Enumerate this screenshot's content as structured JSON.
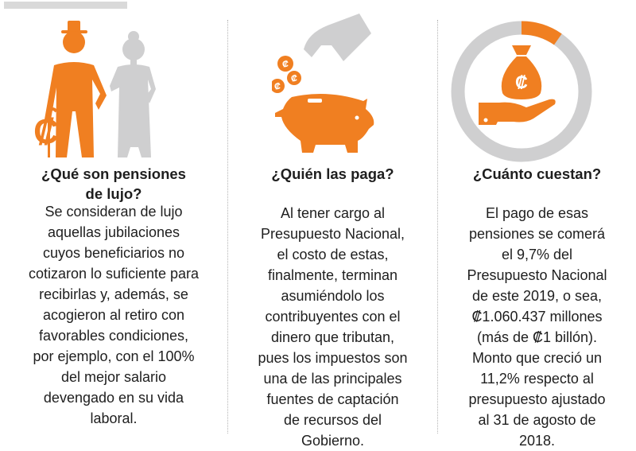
{
  "colors": {
    "accent": "#f07f21",
    "gray": "#cfcfd0"
  },
  "sections": [
    {
      "icon": "elderly-couple-icon",
      "heading": [
        "¿Qué son pensiones",
        "de lujo?"
      ],
      "body": [
        "Se consideran de lujo",
        "aquellas jubilaciones",
        "cuyos beneficiarios no",
        "cotizaron lo suficiente para",
        "recibirlas y, además, se",
        "acogieron al retiro con",
        "favorables condiciones,",
        "por ejemplo, con el 100%",
        "del mejor salario",
        "devengado en su vida",
        "laboral."
      ]
    },
    {
      "icon": "piggy-bank-icon",
      "heading": [
        "¿Quién las paga?"
      ],
      "body": [
        "Al tener cargo al",
        "Presupuesto Nacional,",
        "el costo de estas,",
        "finalmente, terminan",
        "asumiéndolo los",
        "contribuyentes con el",
        "dinero que tributan,",
        "pues los impuestos son",
        "una de las principales",
        "fuentes de captación",
        "de recursos del",
        "Gobierno."
      ]
    },
    {
      "icon": "money-bag-hand-icon",
      "heading": [
        "¿Cuánto cuestan?"
      ],
      "ring_percent": 9.7,
      "body": [
        "El pago de esas",
        "pensiones se comerá",
        "el 9,7% del",
        "Presupuesto Nacional",
        "de este 2019, o sea,",
        "₡1.060.437 millones",
        "(más de ₡1 billón).",
        "Monto que creció un",
        "11,2% respecto al",
        "presupuesto ajustado",
        "al 31 de agosto de",
        "2018."
      ]
    }
  ],
  "currency_symbol": "₡"
}
